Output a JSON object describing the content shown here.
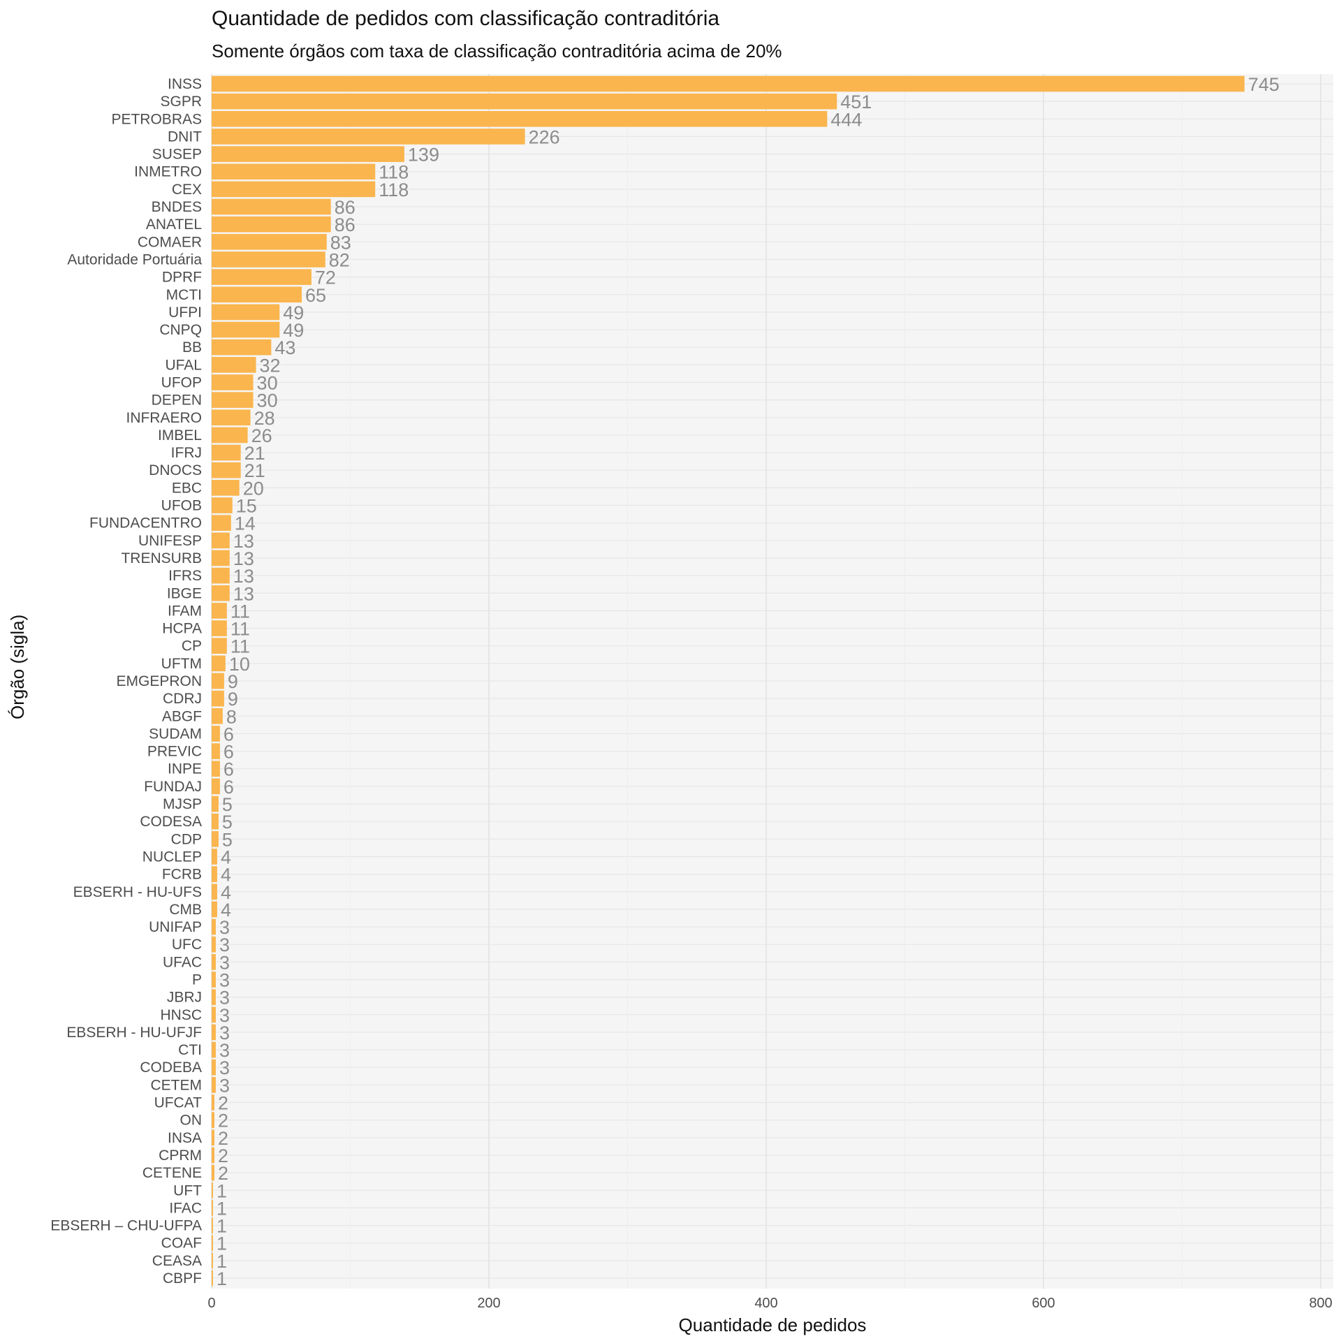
{
  "chart_data": {
    "type": "bar",
    "orientation": "horizontal",
    "title": "Quantidade de pedidos com classificação contraditória",
    "subtitle": "Somente órgãos com taxa de classificação contraditória acima de 20%",
    "xlabel": "Quantidade de pedidos",
    "ylabel": "Órgão (sigla)",
    "xlim": [
      0,
      810
    ],
    "xticks": [
      0,
      200,
      400,
      600,
      800
    ],
    "grid": true,
    "bar_color": "#FAB54E",
    "panel_background": "#F5F5F5",
    "value_label_color": "#8C8C8C",
    "categories": [
      "INSS",
      "SGPR",
      "PETROBRAS",
      "DNIT",
      "SUSEP",
      "INMETRO",
      "CEX",
      "BNDES",
      "ANATEL",
      "COMAER",
      "Autoridade Portuária",
      "DPRF",
      "MCTI",
      "UFPI",
      "CNPQ",
      "BB",
      "UFAL",
      "UFOP",
      "DEPEN",
      "INFRAERO",
      "IMBEL",
      "IFRJ",
      "DNOCS",
      "EBC",
      "UFOB",
      "FUNDACENTRO",
      "UNIFESP",
      "TRENSURB",
      "IFRS",
      "IBGE",
      "IFAM",
      "HCPA",
      "CP",
      "UFTM",
      "EMGEPRON",
      "CDRJ",
      "ABGF",
      "SUDAM",
      "PREVIC",
      "INPE",
      "FUNDAJ",
      "MJSP",
      "CODESA",
      "CDP",
      "NUCLEP",
      "FCRB",
      "EBSERH - HU-UFS",
      "CMB",
      "UNIFAP",
      "UFC",
      "UFAC",
      "P",
      "JBRJ",
      "HNSC",
      "EBSERH - HU-UFJF",
      "CTI",
      "CODEBA",
      "CETEM",
      "UFCAT",
      "ON",
      "INSA",
      "CPRM",
      "CETENE",
      "UFT",
      "IFAC",
      "EBSERH – CHU-UFPA",
      "COAF",
      "CEASA",
      "CBPF"
    ],
    "values": [
      745,
      451,
      444,
      226,
      139,
      118,
      118,
      86,
      86,
      83,
      82,
      72,
      65,
      49,
      49,
      43,
      32,
      30,
      30,
      28,
      26,
      21,
      21,
      20,
      15,
      14,
      13,
      13,
      13,
      13,
      11,
      11,
      11,
      10,
      9,
      9,
      8,
      6,
      6,
      6,
      6,
      5,
      5,
      5,
      4,
      4,
      4,
      4,
      3,
      3,
      3,
      3,
      3,
      3,
      3,
      3,
      3,
      3,
      2,
      2,
      2,
      2,
      2,
      1,
      1,
      1,
      1,
      1,
      1
    ]
  }
}
